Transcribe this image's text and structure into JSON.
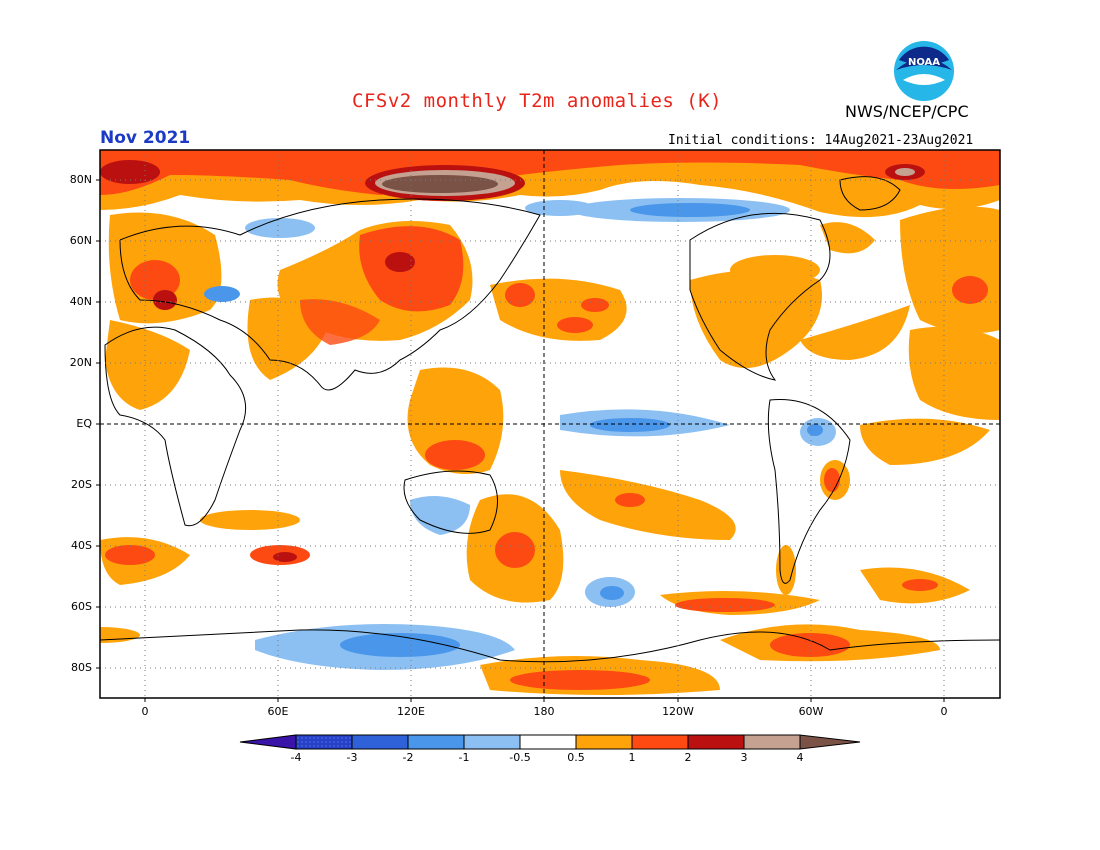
{
  "header": {
    "title": "CFSv2 monthly T2m anomalies (K)",
    "agency": "NWS/NCEP/CPC",
    "logo_text": "NOAA",
    "month": "Nov 2021",
    "initial_conditions": "Initial conditions: 14Aug2021-23Aug2021"
  },
  "colors": {
    "title": "#e8251b",
    "month": "#1c3bc4"
  },
  "map": {
    "lat_labels": [
      "80N",
      "60N",
      "40N",
      "20N",
      "EQ",
      "20S",
      "40S",
      "60S",
      "80S"
    ],
    "lon_labels": [
      "0",
      "60E",
      "120E",
      "180",
      "120W",
      "60W",
      "0"
    ]
  },
  "colorbar": {
    "tick_labels": [
      "-4",
      "-3",
      "-2",
      "-1",
      "-0.5",
      "0.5",
      "1",
      "2",
      "3",
      "4"
    ],
    "bins": [
      {
        "range": "< -4",
        "color": "#3a14a8"
      },
      {
        "range": "-4 to -3",
        "color": "#2740c8"
      },
      {
        "range": "-3 to -2",
        "color": "#2f62d8"
      },
      {
        "range": "-2 to -1",
        "color": "#4996ea"
      },
      {
        "range": "-1 to -0.5",
        "color": "#8cc0f2"
      },
      {
        "range": "-0.5 to 0.5",
        "color": "#ffffff"
      },
      {
        "range": "0.5 to 1",
        "color": "#ffa30a"
      },
      {
        "range": "1 to 2",
        "color": "#fc4a12"
      },
      {
        "range": "2 to 3",
        "color": "#ba1010"
      },
      {
        "range": "3 to 4",
        "color": "#c4a190"
      },
      {
        "range": "> 4",
        "color": "#7a5246"
      }
    ]
  }
}
